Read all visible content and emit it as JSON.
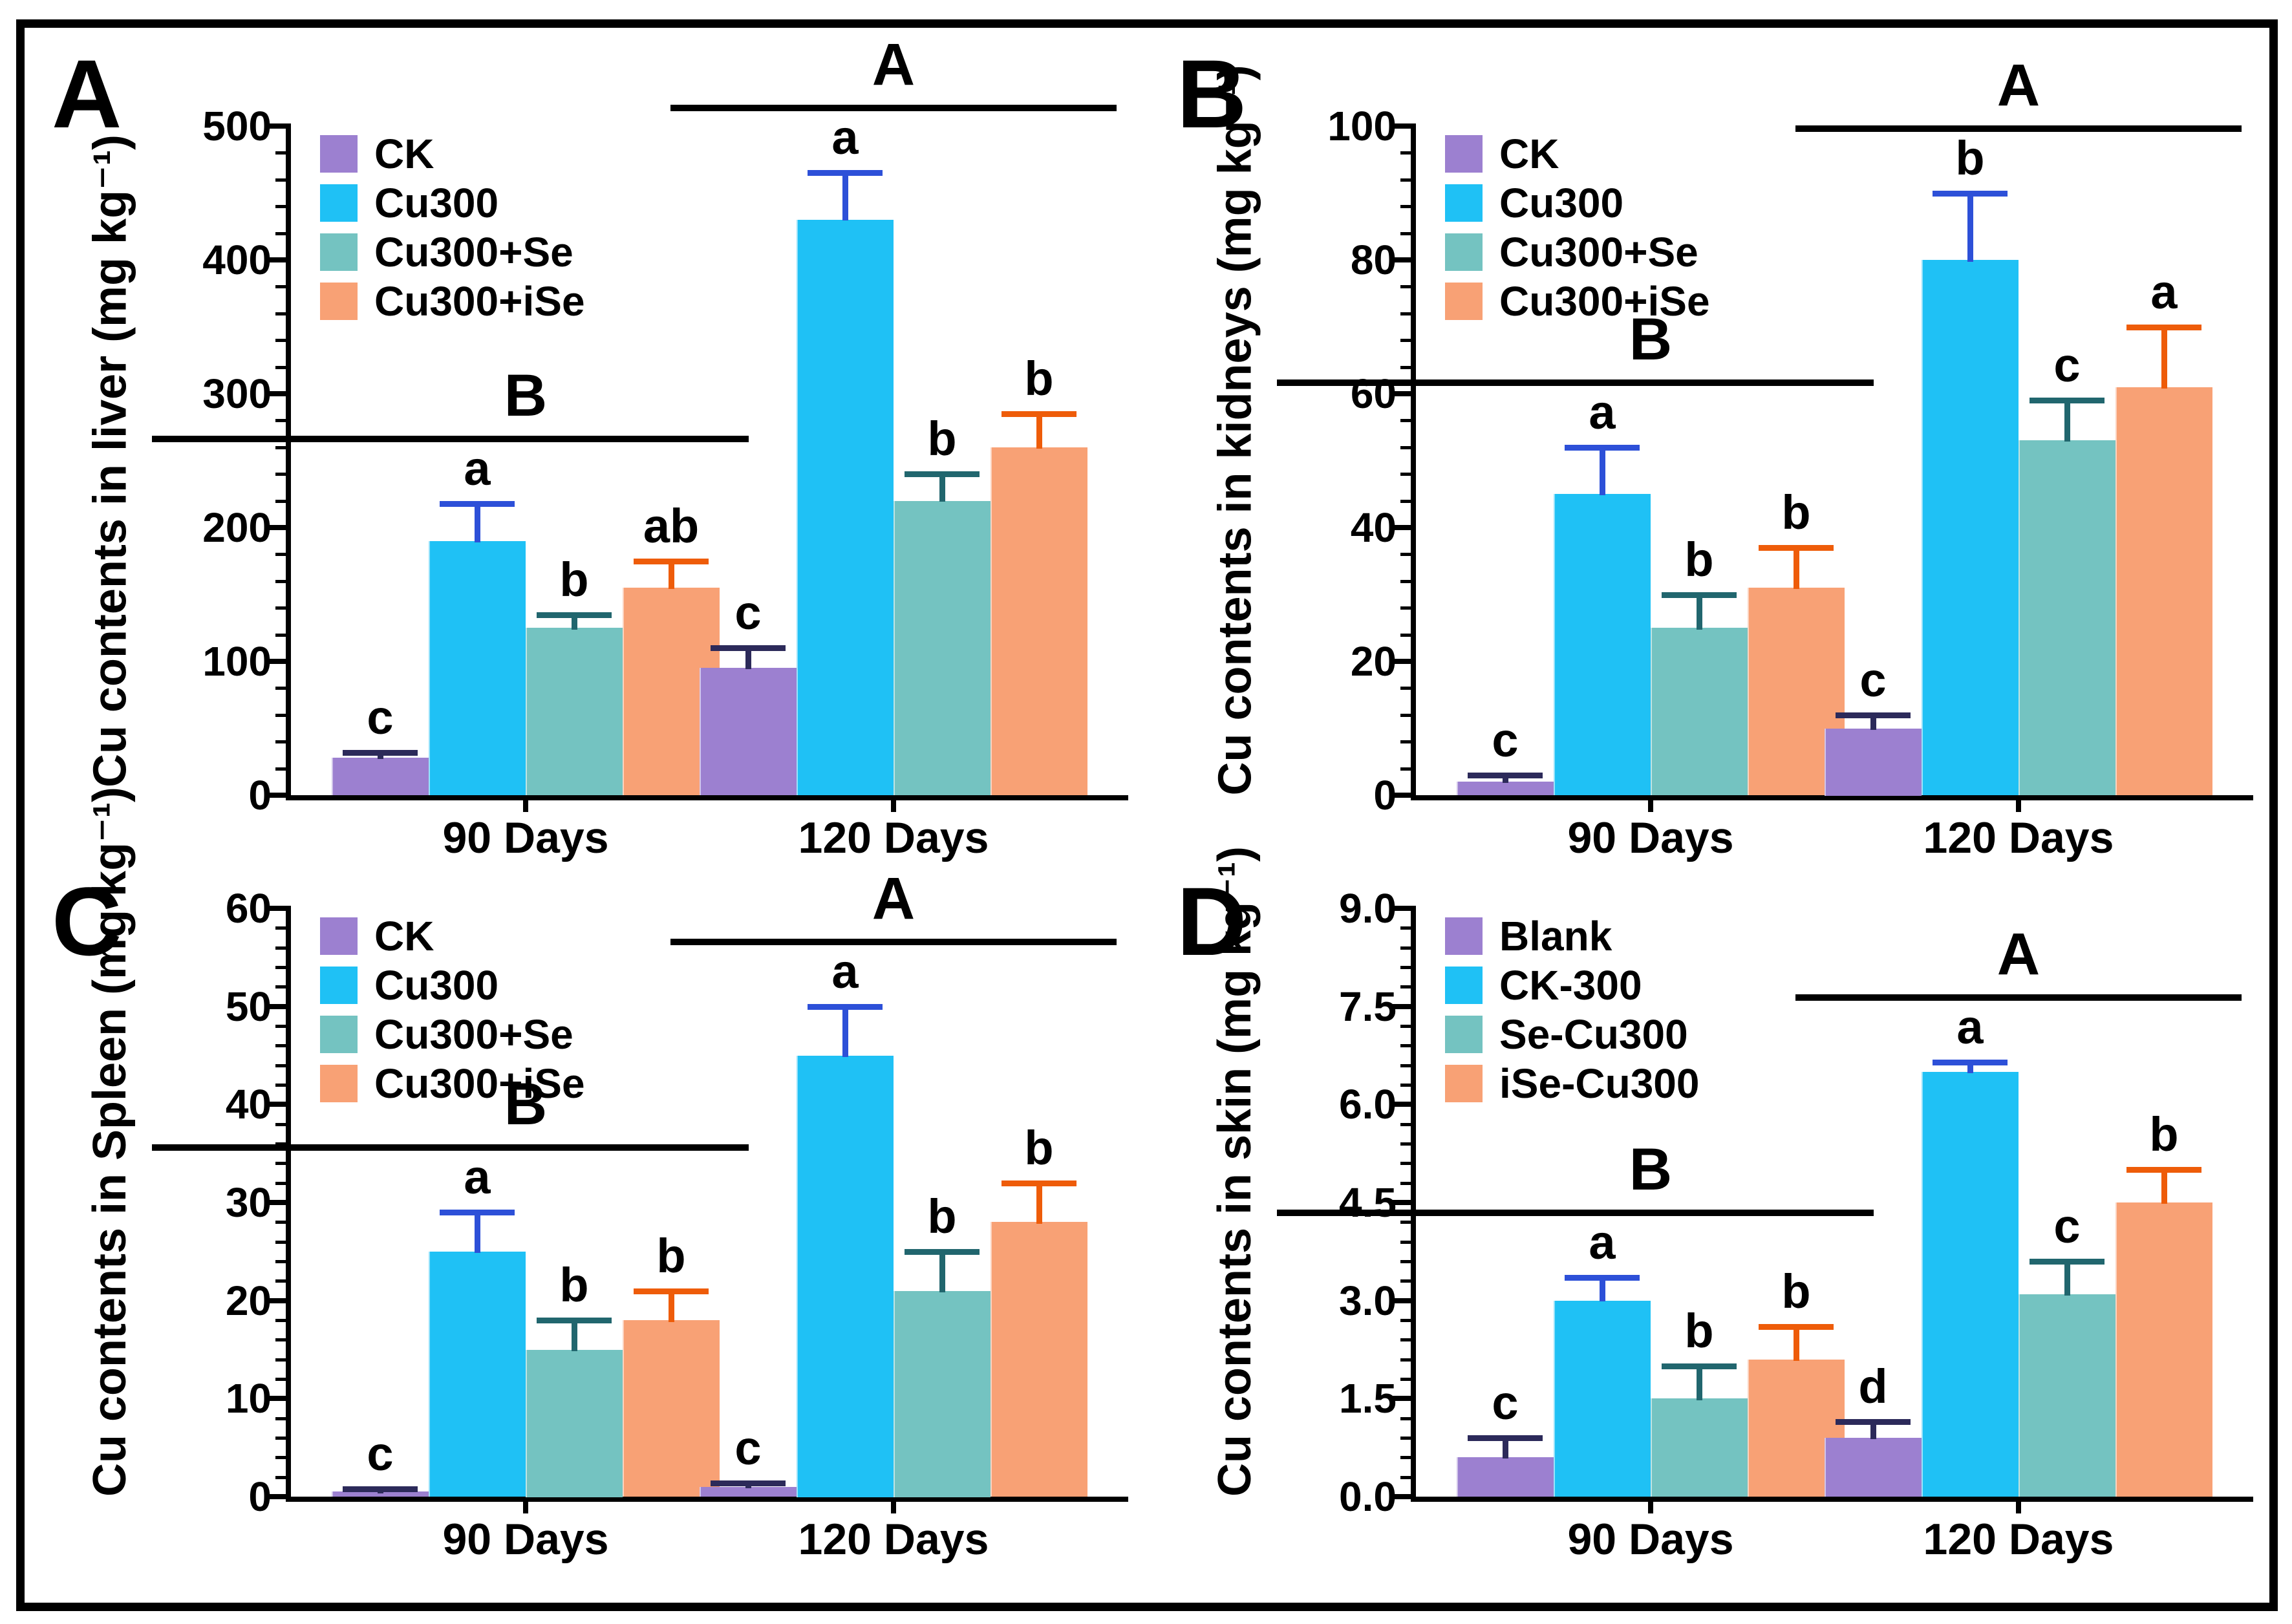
{
  "figure": {
    "background": "#ffffff",
    "border_color": "#000000"
  },
  "palette": {
    "bar_fills": [
      "#9c80d0",
      "#1fc1f5",
      "#74c3c1",
      "#f8a175"
    ],
    "error_bars": [
      "#2c2a5a",
      "#2d50d8",
      "#21666e",
      "#ee5c09"
    ],
    "axis_color": "#000000",
    "text_color": "#000000"
  },
  "chart_data": [
    {
      "type": "bar",
      "panel_label": "A",
      "ylabel": "Cu contents in liver (mg kg⁻¹)",
      "ylim": [
        0,
        500
      ],
      "ytick_labels": [
        "0",
        "100",
        "200",
        "300",
        "400",
        "500"
      ],
      "minor_ticks_per_interval": 4,
      "grid": false,
      "legend_position": "top-left",
      "categories": [
        "90 Days",
        "120 Days"
      ],
      "legend": [
        "CK",
        "Cu300",
        "Cu300+Se",
        "Cu300+iSe"
      ],
      "series": [
        {
          "name": "CK",
          "values": [
            28,
            95
          ],
          "errors": [
            4,
            15
          ],
          "sig_letters": [
            "c",
            "c"
          ]
        },
        {
          "name": "Cu300",
          "values": [
            190,
            430
          ],
          "errors": [
            28,
            35
          ],
          "sig_letters": [
            "a",
            "a"
          ]
        },
        {
          "name": "Cu300+Se",
          "values": [
            125,
            220
          ],
          "errors": [
            10,
            20
          ],
          "sig_letters": [
            "b",
            "b"
          ]
        },
        {
          "name": "Cu300+iSe",
          "values": [
            155,
            260
          ],
          "errors": [
            20,
            25
          ],
          "sig_letters": [
            "ab",
            "b"
          ]
        }
      ],
      "group_significance": [
        {
          "label": "B",
          "approx_y": 270
        },
        {
          "label": "A",
          "approx_y": 520
        }
      ]
    },
    {
      "type": "bar",
      "panel_label": "B",
      "ylabel": "Cu contents in kidneys (mg kg⁻¹)",
      "ylim": [
        0,
        100
      ],
      "ytick_labels": [
        "0",
        "20",
        "40",
        "60",
        "80",
        "100"
      ],
      "minor_ticks_per_interval": 4,
      "grid": false,
      "legend_position": "top-left",
      "categories": [
        "90 Days",
        "120 Days"
      ],
      "legend": [
        "CK",
        "Cu300",
        "Cu300+Se",
        "Cu300+iSe"
      ],
      "series": [
        {
          "name": "CK",
          "values": [
            2,
            10
          ],
          "errors": [
            1,
            2
          ],
          "sig_letters": [
            "c",
            "c"
          ]
        },
        {
          "name": "Cu300",
          "values": [
            45,
            80
          ],
          "errors": [
            7,
            10
          ],
          "sig_letters": [
            "a",
            "b"
          ]
        },
        {
          "name": "Cu300+Se",
          "values": [
            25,
            53
          ],
          "errors": [
            5,
            6
          ],
          "sig_letters": [
            "b",
            "c"
          ]
        },
        {
          "name": "Cu300+iSe",
          "values": [
            31,
            61
          ],
          "errors": [
            6,
            9
          ],
          "sig_letters": [
            "b",
            "a"
          ]
        }
      ],
      "group_significance": [
        {
          "label": "B",
          "approx_y": 62
        },
        {
          "label": "A",
          "approx_y": 95
        }
      ]
    },
    {
      "type": "bar",
      "panel_label": "C",
      "ylabel": "Cu contents in Spleen (mg kg⁻¹)",
      "ylim": [
        0,
        60
      ],
      "ytick_labels": [
        "0",
        "10",
        "20",
        "30",
        "40",
        "50",
        "60"
      ],
      "minor_ticks_per_interval": 4,
      "grid": false,
      "legend_position": "top-left",
      "categories": [
        "90 Days",
        "120 Days"
      ],
      "legend": [
        "CK",
        "Cu300",
        "Cu300+Se",
        "Cu300+iSe"
      ],
      "series": [
        {
          "name": "CK",
          "values": [
            0.5,
            1
          ],
          "errors": [
            0.3,
            0.4
          ],
          "sig_letters": [
            "c",
            "c"
          ]
        },
        {
          "name": "Cu300",
          "values": [
            25,
            45
          ],
          "errors": [
            4,
            5
          ],
          "sig_letters": [
            "a",
            "a"
          ]
        },
        {
          "name": "Cu300+Se",
          "values": [
            15,
            21
          ],
          "errors": [
            3,
            4
          ],
          "sig_letters": [
            "b",
            "b"
          ]
        },
        {
          "name": "Cu300+iSe",
          "values": [
            18,
            28
          ],
          "errors": [
            3,
            4
          ],
          "sig_letters": [
            "b",
            "b"
          ]
        }
      ],
      "group_significance": [
        {
          "label": "B",
          "approx_y": 35
        },
        {
          "label": "A",
          "approx_y": 55
        }
      ]
    },
    {
      "type": "bar",
      "panel_label": "D",
      "ylabel": "Cu contents in skin (mg kg⁻¹)",
      "ylim": [
        0,
        9
      ],
      "ytick_labels": [
        "0.0",
        "1.5",
        "3.0",
        "4.5",
        "6.0",
        "7.5",
        "9.0"
      ],
      "minor_ticks_per_interval": 4,
      "grid": false,
      "legend_position": "top-left",
      "categories": [
        "90 Days",
        "120 Days"
      ],
      "legend": [
        "Blank",
        "CK-300",
        "Se-Cu300",
        "iSe-Cu300"
      ],
      "series": [
        {
          "name": "Blank",
          "values": [
            0.6,
            0.9
          ],
          "errors": [
            0.3,
            0.25
          ],
          "sig_letters": [
            "c",
            "d"
          ]
        },
        {
          "name": "CK-300",
          "values": [
            3.0,
            6.5
          ],
          "errors": [
            0.35,
            0.15
          ],
          "sig_letters": [
            "a",
            "a"
          ]
        },
        {
          "name": "Se-Cu300",
          "values": [
            1.5,
            3.1
          ],
          "errors": [
            0.5,
            0.5
          ],
          "sig_letters": [
            "b",
            "c"
          ]
        },
        {
          "name": "iSe-Cu300",
          "values": [
            2.1,
            4.5
          ],
          "errors": [
            0.5,
            0.5
          ],
          "sig_letters": [
            "b",
            "b"
          ]
        }
      ],
      "group_significance": [
        {
          "label": "B",
          "approx_y": 4.2
        },
        {
          "label": "A",
          "approx_y": 7.8
        }
      ]
    }
  ]
}
